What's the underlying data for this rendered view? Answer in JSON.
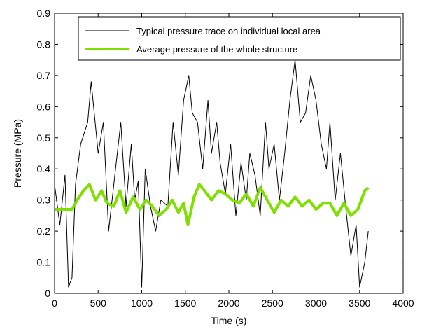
{
  "chart_data": {
    "type": "line",
    "title": "",
    "xlabel": "Time (s)",
    "ylabel": "Pressure (MPa)",
    "xlim": [
      0,
      4000
    ],
    "ylim": [
      0,
      0.9
    ],
    "xticks": [
      "0",
      "500",
      "1000",
      "1500",
      "2000",
      "2500",
      "3000",
      "3500",
      "4000"
    ],
    "yticks": [
      "0",
      "0.1",
      "0.2",
      "0.3",
      "0.4",
      "0.5",
      "0.6",
      "0.7",
      "0.8",
      "0.9"
    ],
    "grid": false,
    "legend_position": "top-right",
    "series": [
      {
        "name": "Typical pressure trace on individual local area",
        "color": "#000000",
        "x": [
          0,
          60,
          120,
          160,
          200,
          240,
          300,
          380,
          420,
          500,
          560,
          620,
          700,
          760,
          820,
          880,
          920,
          960,
          1000,
          1040,
          1100,
          1160,
          1220,
          1300,
          1360,
          1420,
          1480,
          1540,
          1580,
          1640,
          1700,
          1760,
          1800,
          1860,
          1900,
          1960,
          2020,
          2080,
          2140,
          2200,
          2240,
          2300,
          2360,
          2420,
          2460,
          2520,
          2580,
          2640,
          2700,
          2760,
          2820,
          2880,
          2940,
          3000,
          3060,
          3120,
          3160,
          3220,
          3280,
          3340,
          3400,
          3460,
          3500,
          3560,
          3600
        ],
        "values": [
          0.35,
          0.22,
          0.38,
          0.02,
          0.05,
          0.35,
          0.48,
          0.55,
          0.68,
          0.45,
          0.55,
          0.2,
          0.4,
          0.55,
          0.28,
          0.48,
          0.3,
          0.36,
          0.02,
          0.4,
          0.28,
          0.2,
          0.3,
          0.28,
          0.55,
          0.38,
          0.62,
          0.7,
          0.58,
          0.55,
          0.4,
          0.62,
          0.45,
          0.55,
          0.42,
          0.32,
          0.48,
          0.25,
          0.42,
          0.3,
          0.45,
          0.38,
          0.25,
          0.55,
          0.4,
          0.48,
          0.3,
          0.45,
          0.62,
          0.75,
          0.55,
          0.58,
          0.7,
          0.62,
          0.48,
          0.4,
          0.55,
          0.3,
          0.45,
          0.28,
          0.12,
          0.22,
          0.02,
          0.1,
          0.2
        ]
      },
      {
        "name": "Average pressure of the whole structure",
        "color": "#7fe000",
        "x": [
          0,
          100,
          200,
          260,
          330,
          400,
          470,
          540,
          600,
          680,
          750,
          820,
          900,
          980,
          1050,
          1120,
          1200,
          1280,
          1350,
          1420,
          1480,
          1530,
          1600,
          1660,
          1720,
          1800,
          1880,
          1960,
          2040,
          2120,
          2200,
          2280,
          2360,
          2440,
          2520,
          2600,
          2680,
          2760,
          2840,
          2920,
          3000,
          3080,
          3160,
          3240,
          3320,
          3400,
          3480,
          3560,
          3600
        ],
        "values": [
          0.27,
          0.27,
          0.27,
          0.3,
          0.33,
          0.35,
          0.3,
          0.33,
          0.29,
          0.28,
          0.33,
          0.26,
          0.31,
          0.27,
          0.3,
          0.28,
          0.25,
          0.27,
          0.3,
          0.26,
          0.29,
          0.22,
          0.31,
          0.35,
          0.33,
          0.3,
          0.33,
          0.32,
          0.3,
          0.29,
          0.32,
          0.28,
          0.34,
          0.3,
          0.26,
          0.3,
          0.28,
          0.31,
          0.28,
          0.3,
          0.27,
          0.29,
          0.29,
          0.25,
          0.29,
          0.25,
          0.27,
          0.33,
          0.34
        ]
      }
    ]
  }
}
